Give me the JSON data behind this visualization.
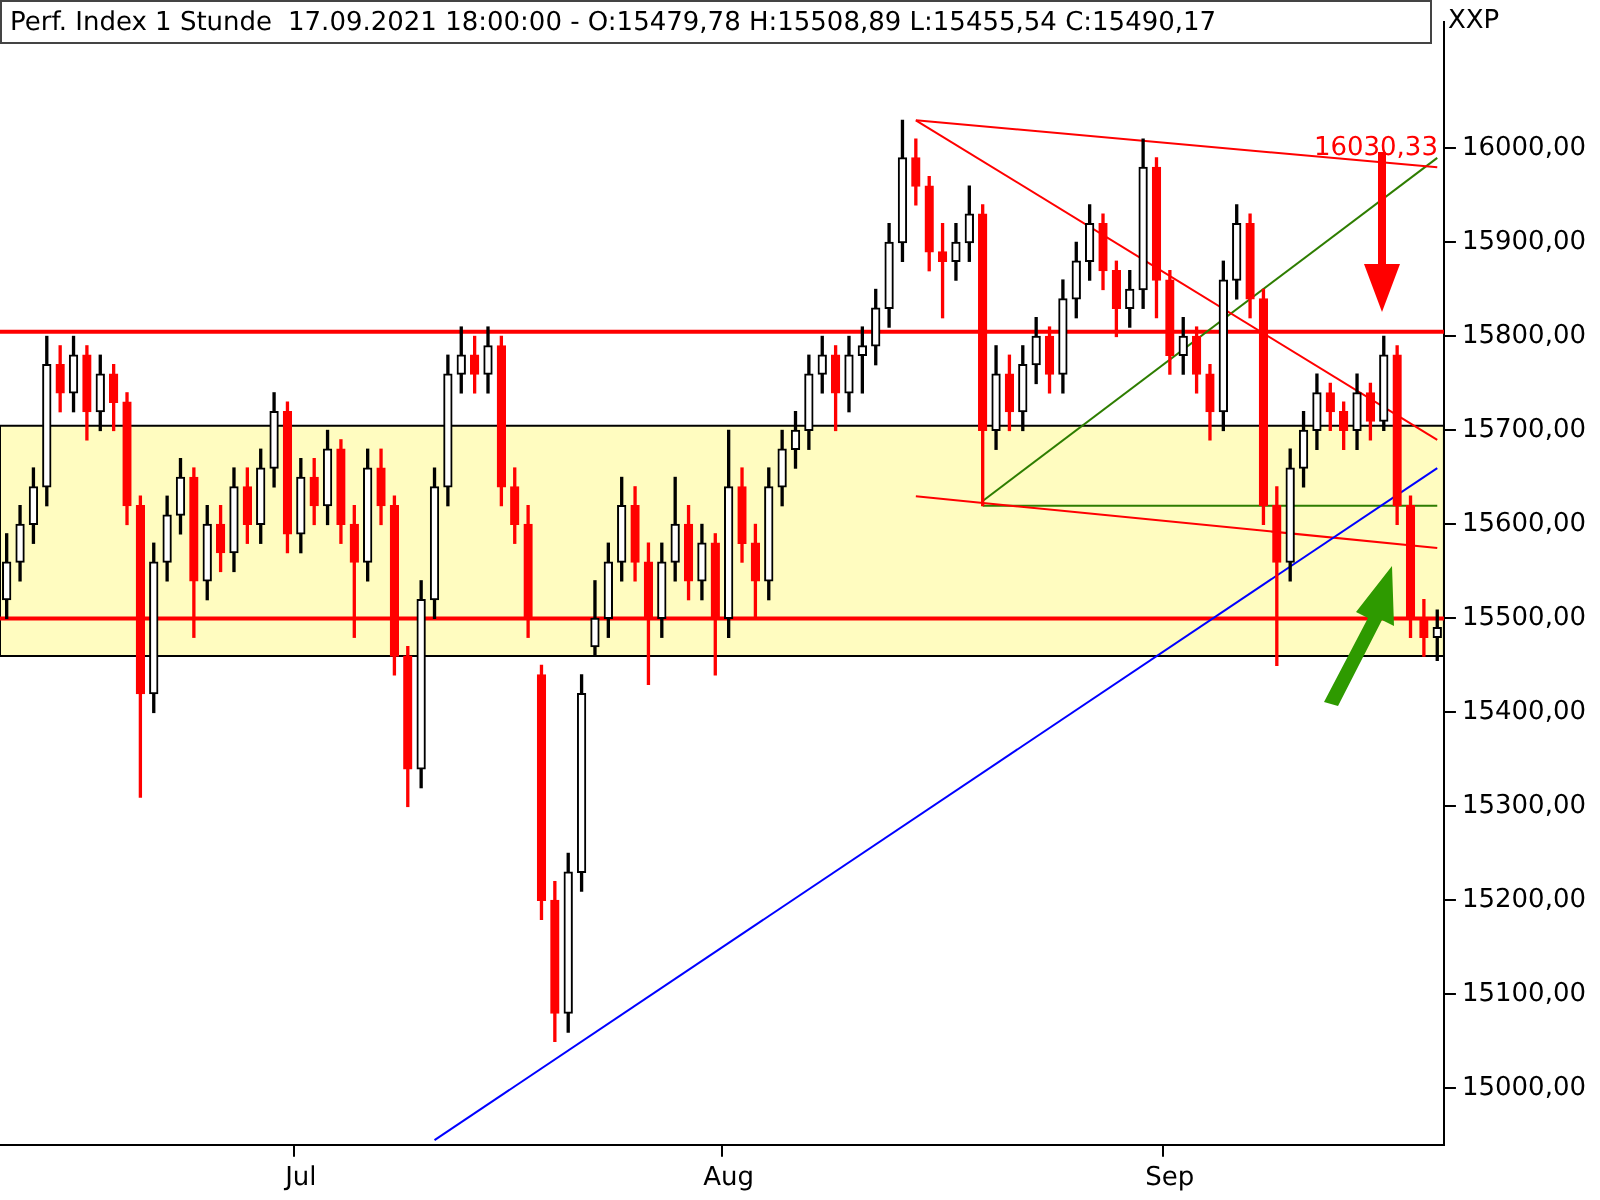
{
  "chart_data": {
    "type": "candlestick",
    "title": "Perf. Index 1 Stunde",
    "subtitle": "17.09.2021 18:00:00 - O:15479,78 H:15508,89 L:15455,54 C:15490,17",
    "ylabel": "XXP",
    "categories": [
      null,
      null,
      null,
      null,
      null,
      null,
      null,
      null,
      null,
      null,
      null,
      null,
      null,
      null,
      null,
      null,
      null,
      null,
      null,
      null,
      null,
      null,
      "Jul",
      null,
      null,
      null,
      null,
      null,
      null,
      null,
      null,
      null,
      null,
      null,
      null,
      null,
      null,
      null,
      null,
      null,
      null,
      null,
      null,
      null,
      null,
      null,
      null,
      null,
      null,
      null,
      null,
      null,
      null,
      null,
      "Aug",
      null,
      null,
      null,
      null,
      null,
      null,
      null,
      null,
      null,
      null,
      null,
      null,
      null,
      null,
      null,
      null,
      null,
      null,
      null,
      null,
      null,
      null,
      null,
      null,
      null,
      null,
      null,
      null,
      null,
      null,
      null,
      null,
      "Sep",
      null,
      null,
      null,
      null,
      null,
      null,
      null,
      null,
      null,
      null,
      null,
      null,
      null,
      null,
      null,
      null,
      null,
      null,
      null,
      null
    ],
    "ohlc": [
      [
        15520,
        15590,
        15500,
        15560
      ],
      [
        15560,
        15620,
        15540,
        15600
      ],
      [
        15600,
        15660,
        15580,
        15640
      ],
      [
        15640,
        15800,
        15620,
        15770
      ],
      [
        15770,
        15790,
        15720,
        15740
      ],
      [
        15740,
        15800,
        15720,
        15780
      ],
      [
        15780,
        15790,
        15690,
        15720
      ],
      [
        15720,
        15780,
        15700,
        15760
      ],
      [
        15760,
        15770,
        15700,
        15730
      ],
      [
        15730,
        15740,
        15600,
        15620
      ],
      [
        15620,
        15630,
        15310,
        15420
      ],
      [
        15420,
        15580,
        15400,
        15560
      ],
      [
        15560,
        15630,
        15540,
        15610
      ],
      [
        15610,
        15670,
        15590,
        15650
      ],
      [
        15650,
        15660,
        15480,
        15540
      ],
      [
        15540,
        15620,
        15520,
        15600
      ],
      [
        15600,
        15620,
        15550,
        15570
      ],
      [
        15570,
        15660,
        15550,
        15640
      ],
      [
        15640,
        15660,
        15580,
        15600
      ],
      [
        15600,
        15680,
        15580,
        15660
      ],
      [
        15660,
        15740,
        15640,
        15720
      ],
      [
        15720,
        15730,
        15570,
        15590
      ],
      [
        15590,
        15670,
        15570,
        15650
      ],
      [
        15650,
        15670,
        15600,
        15620
      ],
      [
        15620,
        15700,
        15600,
        15680
      ],
      [
        15680,
        15690,
        15580,
        15600
      ],
      [
        15600,
        15620,
        15480,
        15560
      ],
      [
        15560,
        15680,
        15540,
        15660
      ],
      [
        15660,
        15680,
        15600,
        15620
      ],
      [
        15620,
        15630,
        15440,
        15460
      ],
      [
        15460,
        15470,
        15300,
        15340
      ],
      [
        15340,
        15540,
        15320,
        15520
      ],
      [
        15520,
        15660,
        15500,
        15640
      ],
      [
        15640,
        15780,
        15620,
        15760
      ],
      [
        15760,
        15810,
        15740,
        15780
      ],
      [
        15780,
        15800,
        15740,
        15760
      ],
      [
        15760,
        15810,
        15740,
        15790
      ],
      [
        15790,
        15800,
        15620,
        15640
      ],
      [
        15640,
        15660,
        15580,
        15600
      ],
      [
        15600,
        15620,
        15480,
        15500
      ],
      [
        15440,
        15450,
        15180,
        15200
      ],
      [
        15200,
        15220,
        15050,
        15080
      ],
      [
        15080,
        15250,
        15060,
        15230
      ],
      [
        15230,
        15440,
        15210,
        15420
      ],
      [
        15470,
        15540,
        15460,
        15500
      ],
      [
        15500,
        15580,
        15480,
        15560
      ],
      [
        15560,
        15650,
        15540,
        15620
      ],
      [
        15620,
        15640,
        15540,
        15560
      ],
      [
        15560,
        15580,
        15430,
        15500
      ],
      [
        15500,
        15580,
        15480,
        15560
      ],
      [
        15560,
        15650,
        15540,
        15600
      ],
      [
        15600,
        15620,
        15520,
        15540
      ],
      [
        15540,
        15600,
        15520,
        15580
      ],
      [
        15580,
        15590,
        15440,
        15500
      ],
      [
        15500,
        15700,
        15480,
        15640
      ],
      [
        15640,
        15660,
        15560,
        15580
      ],
      [
        15580,
        15600,
        15500,
        15540
      ],
      [
        15540,
        15660,
        15520,
        15640
      ],
      [
        15640,
        15700,
        15620,
        15680
      ],
      [
        15680,
        15720,
        15660,
        15700
      ],
      [
        15700,
        15780,
        15680,
        15760
      ],
      [
        15760,
        15800,
        15740,
        15780
      ],
      [
        15780,
        15790,
        15700,
        15740
      ],
      [
        15740,
        15800,
        15720,
        15780
      ],
      [
        15780,
        15810,
        15740,
        15790
      ],
      [
        15790,
        15850,
        15770,
        15830
      ],
      [
        15830,
        15920,
        15810,
        15900
      ],
      [
        15900,
        16030,
        15880,
        15990
      ],
      [
        15990,
        16010,
        15940,
        15960
      ],
      [
        15960,
        15970,
        15870,
        15890
      ],
      [
        15890,
        15920,
        15820,
        15880
      ],
      [
        15880,
        15920,
        15860,
        15900
      ],
      [
        15900,
        15960,
        15880,
        15930
      ],
      [
        15930,
        15940,
        15620,
        15700
      ],
      [
        15700,
        15790,
        15680,
        15760
      ],
      [
        15760,
        15780,
        15700,
        15720
      ],
      [
        15720,
        15790,
        15700,
        15770
      ],
      [
        15770,
        15820,
        15750,
        15800
      ],
      [
        15800,
        15810,
        15740,
        15760
      ],
      [
        15760,
        15860,
        15740,
        15840
      ],
      [
        15840,
        15900,
        15820,
        15880
      ],
      [
        15880,
        15940,
        15860,
        15920
      ],
      [
        15920,
        15930,
        15850,
        15870
      ],
      [
        15870,
        15880,
        15800,
        15830
      ],
      [
        15830,
        15870,
        15810,
        15850
      ],
      [
        15850,
        16010,
        15830,
        15980
      ],
      [
        15980,
        15990,
        15820,
        15860
      ],
      [
        15860,
        15870,
        15760,
        15780
      ],
      [
        15780,
        15820,
        15760,
        15800
      ],
      [
        15800,
        15810,
        15740,
        15760
      ],
      [
        15760,
        15770,
        15690,
        15720
      ],
      [
        15720,
        15880,
        15700,
        15860
      ],
      [
        15860,
        15940,
        15840,
        15920
      ],
      [
        15920,
        15930,
        15820,
        15840
      ],
      [
        15840,
        15850,
        15600,
        15620
      ],
      [
        15620,
        15640,
        15450,
        15560
      ],
      [
        15560,
        15680,
        15540,
        15660
      ],
      [
        15660,
        15720,
        15640,
        15700
      ],
      [
        15700,
        15760,
        15680,
        15740
      ],
      [
        15740,
        15750,
        15700,
        15720
      ],
      [
        15720,
        15730,
        15680,
        15700
      ],
      [
        15700,
        15760,
        15680,
        15740
      ],
      [
        15740,
        15750,
        15690,
        15710
      ],
      [
        15710,
        15800,
        15700,
        15780
      ],
      [
        15780,
        15790,
        15600,
        15620
      ],
      [
        15620,
        15630,
        15480,
        15500
      ],
      [
        15500,
        15520,
        15460,
        15480
      ],
      [
        15479.78,
        15508.89,
        15455.54,
        15490.17
      ]
    ],
    "series": [
      {
        "type": "line",
        "color": "#0000ff",
        "values": [
          null,
          null,
          null,
          null,
          null,
          null,
          null,
          null,
          null,
          null,
          null,
          null,
          null,
          null,
          null,
          null,
          null,
          null,
          null,
          null,
          null,
          null,
          null,
          null,
          null,
          null,
          null,
          null,
          null,
          null,
          null,
          null,
          14945,
          null,
          null,
          null,
          null,
          null,
          null,
          null,
          null,
          null,
          null,
          null,
          null,
          null,
          null,
          null,
          null,
          null,
          null,
          null,
          null,
          null,
          null,
          null,
          null,
          null,
          null,
          null,
          null,
          null,
          null,
          null,
          null,
          null,
          null,
          null,
          null,
          null,
          null,
          null,
          null,
          null,
          null,
          null,
          null,
          null,
          null,
          null,
          null,
          null,
          null,
          null,
          null,
          null,
          null,
          null,
          null,
          null,
          null,
          null,
          null,
          null,
          null,
          null,
          null,
          null,
          null,
          null,
          null,
          null,
          null,
          null,
          null,
          null,
          null,
          15660
        ]
      },
      {
        "type": "line",
        "color": "#ff0000",
        "values": [
          null,
          null,
          null,
          null,
          null,
          null,
          null,
          null,
          null,
          null,
          null,
          null,
          null,
          null,
          null,
          null,
          null,
          null,
          null,
          null,
          null,
          null,
          null,
          null,
          null,
          null,
          null,
          null,
          null,
          null,
          null,
          null,
          null,
          null,
          null,
          null,
          null,
          null,
          null,
          null,
          null,
          null,
          null,
          null,
          null,
          null,
          null,
          null,
          null,
          null,
          null,
          null,
          null,
          null,
          null,
          null,
          null,
          null,
          null,
          null,
          null,
          null,
          null,
          null,
          null,
          null,
          null,
          null,
          16030,
          null,
          null,
          null,
          null,
          null,
          null,
          null,
          null,
          null,
          null,
          null,
          null,
          null,
          null,
          null,
          null,
          null,
          null,
          null,
          null,
          null,
          null,
          null,
          null,
          null,
          null,
          null,
          null,
          null,
          null,
          null,
          null,
          null,
          null,
          null,
          null,
          null,
          null,
          15980
        ]
      },
      {
        "type": "line",
        "color": "#ff0000",
        "values": [
          null,
          null,
          null,
          null,
          null,
          null,
          null,
          null,
          null,
          null,
          null,
          null,
          null,
          null,
          null,
          null,
          null,
          null,
          null,
          null,
          null,
          null,
          null,
          null,
          null,
          null,
          null,
          null,
          null,
          null,
          null,
          null,
          null,
          null,
          null,
          null,
          null,
          null,
          null,
          null,
          null,
          null,
          null,
          null,
          null,
          null,
          null,
          null,
          null,
          null,
          null,
          null,
          null,
          null,
          null,
          null,
          null,
          null,
          null,
          null,
          null,
          null,
          null,
          null,
          null,
          null,
          null,
          null,
          15630,
          null,
          null,
          null,
          null,
          null,
          null,
          null,
          null,
          null,
          null,
          null,
          null,
          null,
          null,
          null,
          null,
          null,
          null,
          null,
          null,
          null,
          null,
          null,
          null,
          null,
          null,
          null,
          null,
          null,
          null,
          null,
          null,
          null,
          null,
          null,
          null,
          null,
          null,
          15575
        ]
      },
      {
        "type": "line",
        "color": "#ff0000",
        "values": [
          null,
          null,
          null,
          null,
          null,
          null,
          null,
          null,
          null,
          null,
          null,
          null,
          null,
          null,
          null,
          null,
          null,
          null,
          null,
          null,
          null,
          null,
          null,
          null,
          null,
          null,
          null,
          null,
          null,
          null,
          null,
          null,
          null,
          null,
          null,
          null,
          null,
          null,
          null,
          null,
          null,
          null,
          null,
          null,
          null,
          null,
          null,
          null,
          null,
          null,
          null,
          null,
          null,
          null,
          null,
          null,
          null,
          null,
          null,
          null,
          null,
          null,
          null,
          null,
          null,
          null,
          null,
          null,
          16030,
          null,
          null,
          null,
          null,
          null,
          null,
          null,
          null,
          null,
          null,
          null,
          null,
          null,
          null,
          null,
          null,
          null,
          null,
          null,
          null,
          null,
          null,
          null,
          null,
          null,
          null,
          null,
          null,
          null,
          null,
          null,
          null,
          null,
          null,
          null,
          null,
          null,
          null,
          15690
        ]
      },
      {
        "type": "line",
        "color": "#2e7d00",
        "values": [
          null,
          null,
          null,
          null,
          null,
          null,
          null,
          null,
          null,
          null,
          null,
          null,
          null,
          null,
          null,
          null,
          null,
          null,
          null,
          null,
          null,
          null,
          null,
          null,
          null,
          null,
          null,
          null,
          null,
          null,
          null,
          null,
          null,
          null,
          null,
          null,
          null,
          null,
          null,
          null,
          null,
          null,
          null,
          null,
          null,
          null,
          null,
          null,
          null,
          null,
          null,
          null,
          null,
          null,
          null,
          null,
          null,
          null,
          null,
          null,
          null,
          null,
          null,
          null,
          null,
          null,
          null,
          null,
          null,
          null,
          null,
          null,
          null,
          15620,
          null,
          null,
          null,
          null,
          null,
          null,
          null,
          null,
          null,
          null,
          null,
          null,
          null,
          null,
          null,
          null,
          null,
          null,
          null,
          null,
          null,
          null,
          null,
          null,
          null,
          null,
          null,
          null,
          null,
          null,
          null,
          null,
          null,
          15620
        ]
      },
      {
        "type": "line",
        "color": "#2e7d00",
        "values": [
          null,
          null,
          null,
          null,
          null,
          null,
          null,
          null,
          null,
          null,
          null,
          null,
          null,
          null,
          null,
          null,
          null,
          null,
          null,
          null,
          null,
          null,
          null,
          null,
          null,
          null,
          null,
          null,
          null,
          null,
          null,
          null,
          null,
          null,
          null,
          null,
          null,
          null,
          null,
          null,
          null,
          null,
          null,
          null,
          null,
          null,
          null,
          null,
          null,
          null,
          null,
          null,
          null,
          null,
          null,
          null,
          null,
          null,
          null,
          null,
          null,
          null,
          null,
          null,
          null,
          null,
          null,
          null,
          null,
          null,
          null,
          null,
          null,
          15625,
          null,
          null,
          null,
          null,
          null,
          null,
          null,
          null,
          null,
          null,
          null,
          null,
          null,
          null,
          null,
          null,
          null,
          null,
          null,
          null,
          null,
          null,
          null,
          null,
          null,
          null,
          null,
          null,
          null,
          null,
          null,
          null,
          null,
          15990
        ]
      }
    ],
    "ylim": [
      14940,
      16135
    ],
    "yticks": [
      {
        "value": 15000,
        "label": "15000,00"
      },
      {
        "value": 15100,
        "label": "15100,00"
      },
      {
        "value": 15200,
        "label": "15200,00"
      },
      {
        "value": 15300,
        "label": "15300,00"
      },
      {
        "value": 15400,
        "label": "15400,00"
      },
      {
        "value": 15500,
        "label": "15500,00"
      },
      {
        "value": 15600,
        "label": "15600,00"
      },
      {
        "value": 15700,
        "label": "15700,00"
      },
      {
        "value": 15800,
        "label": "15800,00"
      },
      {
        "value": 15900,
        "label": "15900,00"
      },
      {
        "value": 16000,
        "label": "16000,00"
      }
    ],
    "ref_lines": [
      {
        "axis": "y",
        "value": 15805,
        "color": "#ff0000"
      },
      {
        "axis": "y",
        "value": 15500,
        "color": "#ff0000"
      }
    ],
    "bands": [
      {
        "axis": "y",
        "from": 15460,
        "to": 15705,
        "color": "#fffcc0"
      }
    ],
    "annotations": [
      "16030,33"
    ],
    "grid": false,
    "legend": false
  }
}
